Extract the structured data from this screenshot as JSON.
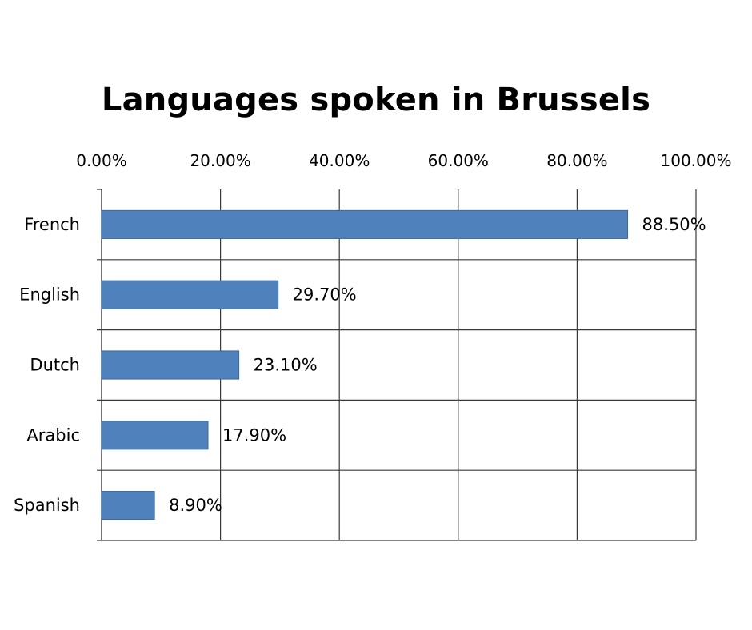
{
  "chart_data": {
    "type": "bar",
    "orientation": "horizontal",
    "title": "Languages spoken in Brussels",
    "categories": [
      "French",
      "English",
      "Dutch",
      "Arabic",
      "Spanish"
    ],
    "values": [
      88.5,
      29.7,
      23.1,
      17.9,
      8.9
    ],
    "data_labels": [
      "88.50%",
      "29.70%",
      "23.10%",
      "17.90%",
      "8.90%"
    ],
    "xlim": [
      0,
      100
    ],
    "x_ticks": [
      0,
      20,
      40,
      60,
      80,
      100
    ],
    "x_tick_labels": [
      "0.00%",
      "20.00%",
      "40.00%",
      "60.00%",
      "80.00%",
      "100.00%"
    ],
    "x_axis_position": "top",
    "grid": true,
    "legend": "none",
    "bar_color": "#4F81BD",
    "bar_edge_color": "#3A6A9F",
    "grid_color": "#3a3a3a"
  }
}
